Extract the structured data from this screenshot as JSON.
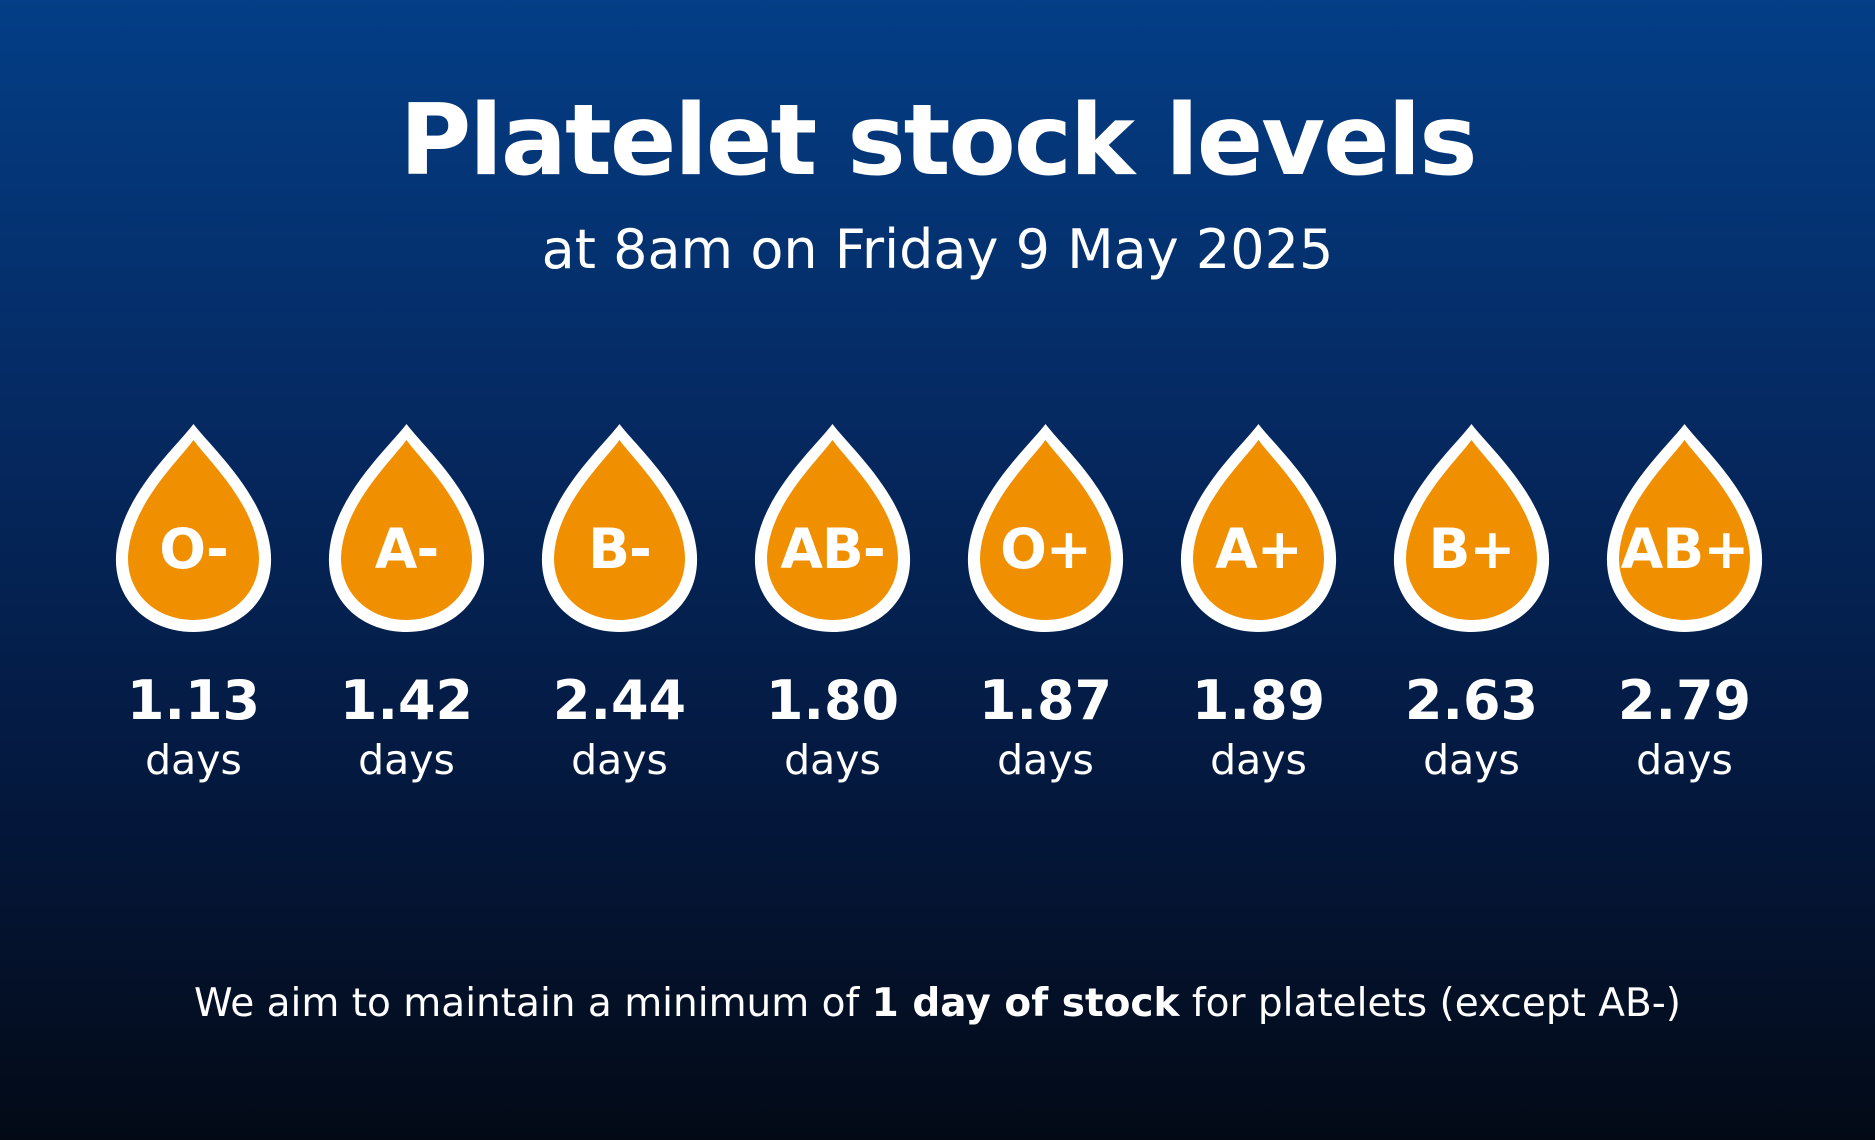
{
  "title": "Platelet stock levels",
  "subtitle": "at 8am on Friday 9 May 2025",
  "colors": {
    "background_top": "#033e86",
    "background_bottom": "#030a16",
    "drop_fill": "#f09000",
    "drop_outline": "#ffffff",
    "text": "#ffffff"
  },
  "unit_label": "days",
  "blood_groups": [
    {
      "group": "O-",
      "days": "1.13"
    },
    {
      "group": "A-",
      "days": "1.42"
    },
    {
      "group": "B-",
      "days": "2.44"
    },
    {
      "group": "AB-",
      "days": "1.80"
    },
    {
      "group": "O+",
      "days": "1.87"
    },
    {
      "group": "A+",
      "days": "1.89"
    },
    {
      "group": "B+",
      "days": "2.63"
    },
    {
      "group": "AB+",
      "days": "2.79"
    }
  ],
  "footer": {
    "before": "We aim to maintain a minimum of ",
    "emphasis": "1 day of stock",
    "after": " for platelets (except AB-)"
  }
}
